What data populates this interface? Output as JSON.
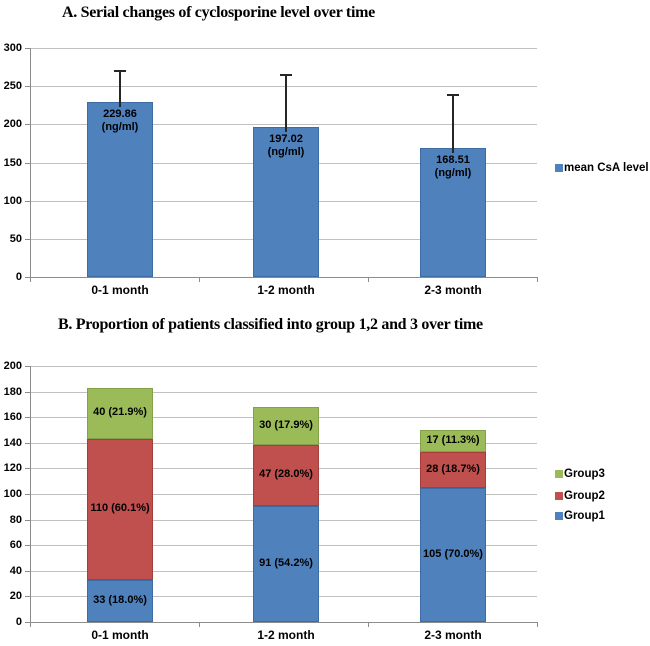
{
  "page": {
    "background": "#ffffff"
  },
  "colors": {
    "grid": "#C0C0C0",
    "axis": "#8C8C8C",
    "error_bar": "#262626",
    "text": "#000000"
  },
  "chart_data": [
    {
      "id": "A",
      "type": "bar",
      "title": "A. Serial changes of cyclosporine level over time",
      "categories": [
        "0-1 month",
        "1-2 month",
        "2-3 month"
      ],
      "series": [
        {
          "name": "mean CsA level",
          "color": "#4F81BD",
          "border": "#3D6CA5",
          "values": [
            229.86,
            197.02,
            168.51
          ]
        }
      ],
      "bar_labels": [
        [
          "229.86",
          "(ng/ml)"
        ],
        [
          "197.02",
          "(ng/ml)"
        ],
        [
          "168.51",
          "(ng/ml)"
        ]
      ],
      "error_bar_tops": [
        270,
        264,
        238
      ],
      "ylim": [
        0,
        300
      ],
      "yticks": [
        0,
        50,
        100,
        150,
        200,
        250,
        300
      ],
      "grid": true,
      "legend_position": "right",
      "legend": [
        {
          "label": "mean CsA level",
          "color": "#4F81BD"
        }
      ]
    },
    {
      "id": "B",
      "type": "stacked-bar",
      "title": "B. Proportion of patients classified into group 1,2 and 3 over time",
      "categories": [
        "0-1 month",
        "1-2 month",
        "2-3 month"
      ],
      "series": [
        {
          "name": "Group1",
          "color": "#4F81BD",
          "border": "#3D6CA5",
          "values": [
            33,
            91,
            105
          ],
          "labels": [
            "33 (18.0%)",
            "91 (54.2%)",
            "105 (70.0%)"
          ]
        },
        {
          "name": "Group2",
          "color": "#C0504D",
          "border": "#A43E3C",
          "values": [
            110,
            47,
            28
          ],
          "labels": [
            "110 (60.1%)",
            "47 (28.0%)",
            "28 (18.7%)"
          ]
        },
        {
          "name": "Group3",
          "color": "#9BBB59",
          "border": "#83A14A",
          "values": [
            40,
            30,
            17
          ],
          "labels": [
            "40 (21.9%)",
            "30 (17.9%)",
            "17 (11.3%)"
          ]
        }
      ],
      "ylim": [
        0,
        200
      ],
      "yticks": [
        0,
        20,
        40,
        60,
        80,
        100,
        120,
        140,
        160,
        180,
        200
      ],
      "grid": true,
      "legend_position": "right",
      "legend": [
        {
          "label": "Group3",
          "color": "#9BBB59"
        },
        {
          "label": "Group2",
          "color": "#C0504D"
        },
        {
          "label": "Group1",
          "color": "#4F81BD"
        }
      ]
    }
  ]
}
